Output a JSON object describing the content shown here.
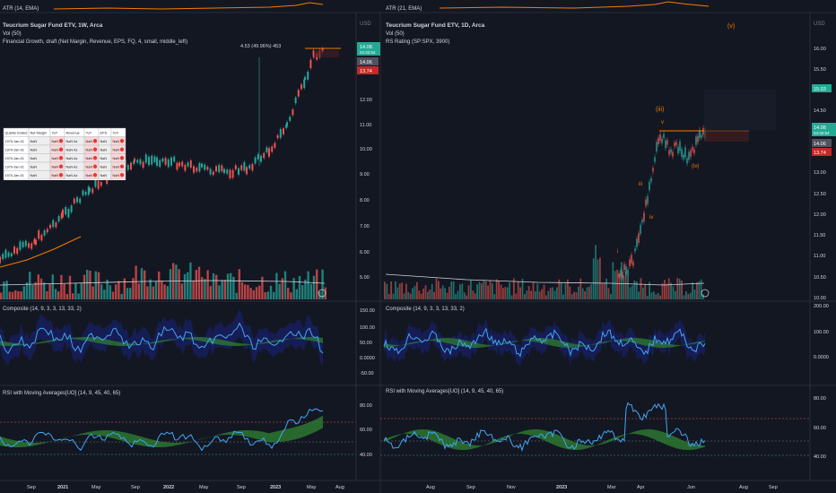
{
  "colors": {
    "background": "#131722",
    "grid": "#1e222d",
    "divider": "#2a2e39",
    "text": "#d1d4dc",
    "muted": "#787b86",
    "up": "#26a69a",
    "down": "#ef5350",
    "orange": "#f57c00",
    "blue_line": "#42a5f5",
    "band": "#1a237e",
    "price_green": "#22ab94",
    "price_red": "#c62828",
    "price_gray": "#50535e"
  },
  "top_strip": {
    "left_label": "ATR (14, EMA)",
    "right_label": "ATR (21, EMA)"
  },
  "left_chart": {
    "title": "Teucrium Sugar Fund ETV, 1W, Arca",
    "volume_label": "Vol (50)",
    "indicator_label": "Financial Growth, draft (Net Margin, Revenue, EPS, FQ, 4, small, middle_left)",
    "currency": "USD",
    "annotation": "4.53 (49.96%) 453",
    "price_badges": [
      {
        "text": "14.08",
        "sub": "04:32:54",
        "color": "#22ab94"
      },
      {
        "text": "14.06",
        "color": "#50535e"
      },
      {
        "text": "13.74",
        "color": "#c62828"
      }
    ],
    "y_ticks": [],
    "fin_table": {
      "headers": [
        "Quarter Ended",
        "Net Margin",
        "YoY",
        "Revenue",
        "YoY",
        "EPS",
        "YoY"
      ],
      "rows": [
        [
          "1970-Jan-01",
          "NaN",
          "NaN",
          "NaN Az",
          "NaN",
          "NaN",
          "NaN"
        ],
        [
          "1970-Jan-01",
          "NaN",
          "NaN",
          "NaN Az",
          "NaN",
          "NaN",
          "NaN"
        ],
        [
          "1970-Jan-01",
          "NaN",
          "NaN",
          "NaN Az",
          "NaN",
          "NaN",
          "NaN"
        ],
        [
          "1970-Jan-01",
          "NaN",
          "NaN",
          "NaN Az",
          "NaN",
          "NaN",
          "NaN"
        ],
        [
          "1970-Jan-01",
          "NaN",
          "NaN",
          "NaN Az",
          "NaN",
          "NaN",
          "NaN"
        ]
      ]
    },
    "composite_label": "Composite (14, 9, 3, 3, 13, 33, 2)",
    "composite_ticks": [
      "150.00",
      "100.00",
      "50.00",
      "0.0000",
      "-50.00"
    ],
    "rsi_label": "RSI with Moving Averages[UO] (14, 9, 45, 40, 65)",
    "rsi_ticks": [
      "80.00",
      "60.00",
      "40.00"
    ],
    "x_ticks": [
      "Sep",
      "2021",
      "May",
      "Sep",
      "2022",
      "May",
      "Sep",
      "2023",
      "May",
      "Aug"
    ]
  },
  "right_chart": {
    "title": "Teucrium Sugar Fund ETV, 1D, Arca",
    "volume_label": "Vol (50)",
    "indicator_label": "RS Rating (SP:SPX, 3900)",
    "currency": "USD",
    "y_ticks": [
      "16.00",
      "15.50",
      "15.00",
      "14.50",
      "14.00",
      "13.50",
      "13.00",
      "12.50",
      "12.00",
      "11.50",
      "11.00",
      "10.50",
      "10.00"
    ],
    "price_badges": [
      {
        "text": "15.03",
        "color": "#22ab94"
      },
      {
        "text": "14.08",
        "sub": "04:32:54",
        "color": "#22ab94"
      },
      {
        "text": "14.06",
        "color": "#50535e"
      },
      {
        "text": "13.74",
        "color": "#c62828"
      }
    ],
    "left_axis_ticks": [
      "12.00",
      "11.00",
      "10.00",
      "9.00",
      "8.00",
      "7.00",
      "6.00",
      "5.00"
    ],
    "wave_labels": [
      "(v)",
      "(iii)",
      "v",
      "iii",
      "iv",
      "(iv)",
      "i"
    ],
    "composite_label": "Composite (14, 9, 3, 3, 13, 33, 2)",
    "composite_ticks": [
      "200.00",
      "100.00",
      "0.0000"
    ],
    "rsi_label": "RSI with Moving Averages[UO] (14, 9, 45, 40, 65)",
    "rsi_ticks": [
      "80.00",
      "60.00",
      "40.00"
    ],
    "x_ticks": [
      "Aug",
      "Sep",
      "Nov",
      "2023",
      "Mar",
      "Apr",
      "Jun",
      "Aug",
      "Sep"
    ]
  }
}
